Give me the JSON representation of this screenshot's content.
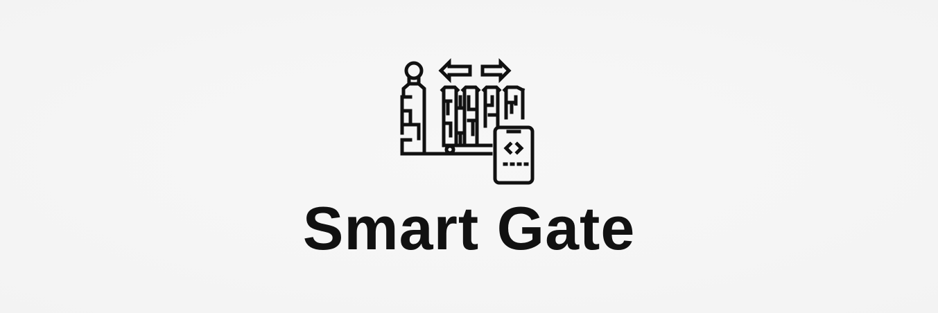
{
  "brand": {
    "name": "Smart Gate",
    "icon": "smart-gate-icon",
    "text_color": "#111111",
    "background_color": "#f6f6f6"
  }
}
